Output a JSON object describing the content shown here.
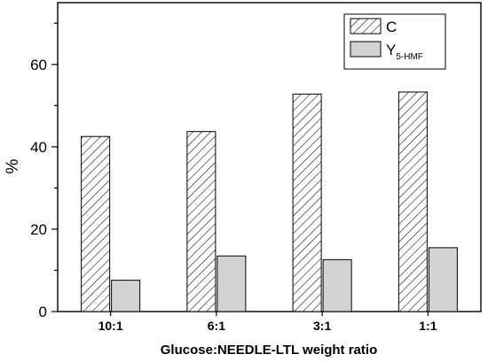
{
  "chart_data": {
    "type": "bar",
    "categories": [
      "10:1",
      "6:1",
      "3:1",
      "1:1"
    ],
    "series": [
      {
        "name": "C",
        "values": [
          42.5,
          43.7,
          52.8,
          53.3
        ],
        "fill": "hatch",
        "color": "#ffffff"
      },
      {
        "name": "Y",
        "name_subscript": "5-HMF",
        "values": [
          7.6,
          13.5,
          12.6,
          15.5
        ],
        "fill": "solid",
        "color": "#d3d3d3"
      }
    ],
    "xlabel": "Glucose:NEEDLE-LTL weight ratio",
    "ylabel": "%",
    "ylim": [
      0,
      75
    ],
    "yticks": [
      0,
      20,
      40,
      60
    ],
    "grid": false,
    "legend_position": "top-right"
  }
}
